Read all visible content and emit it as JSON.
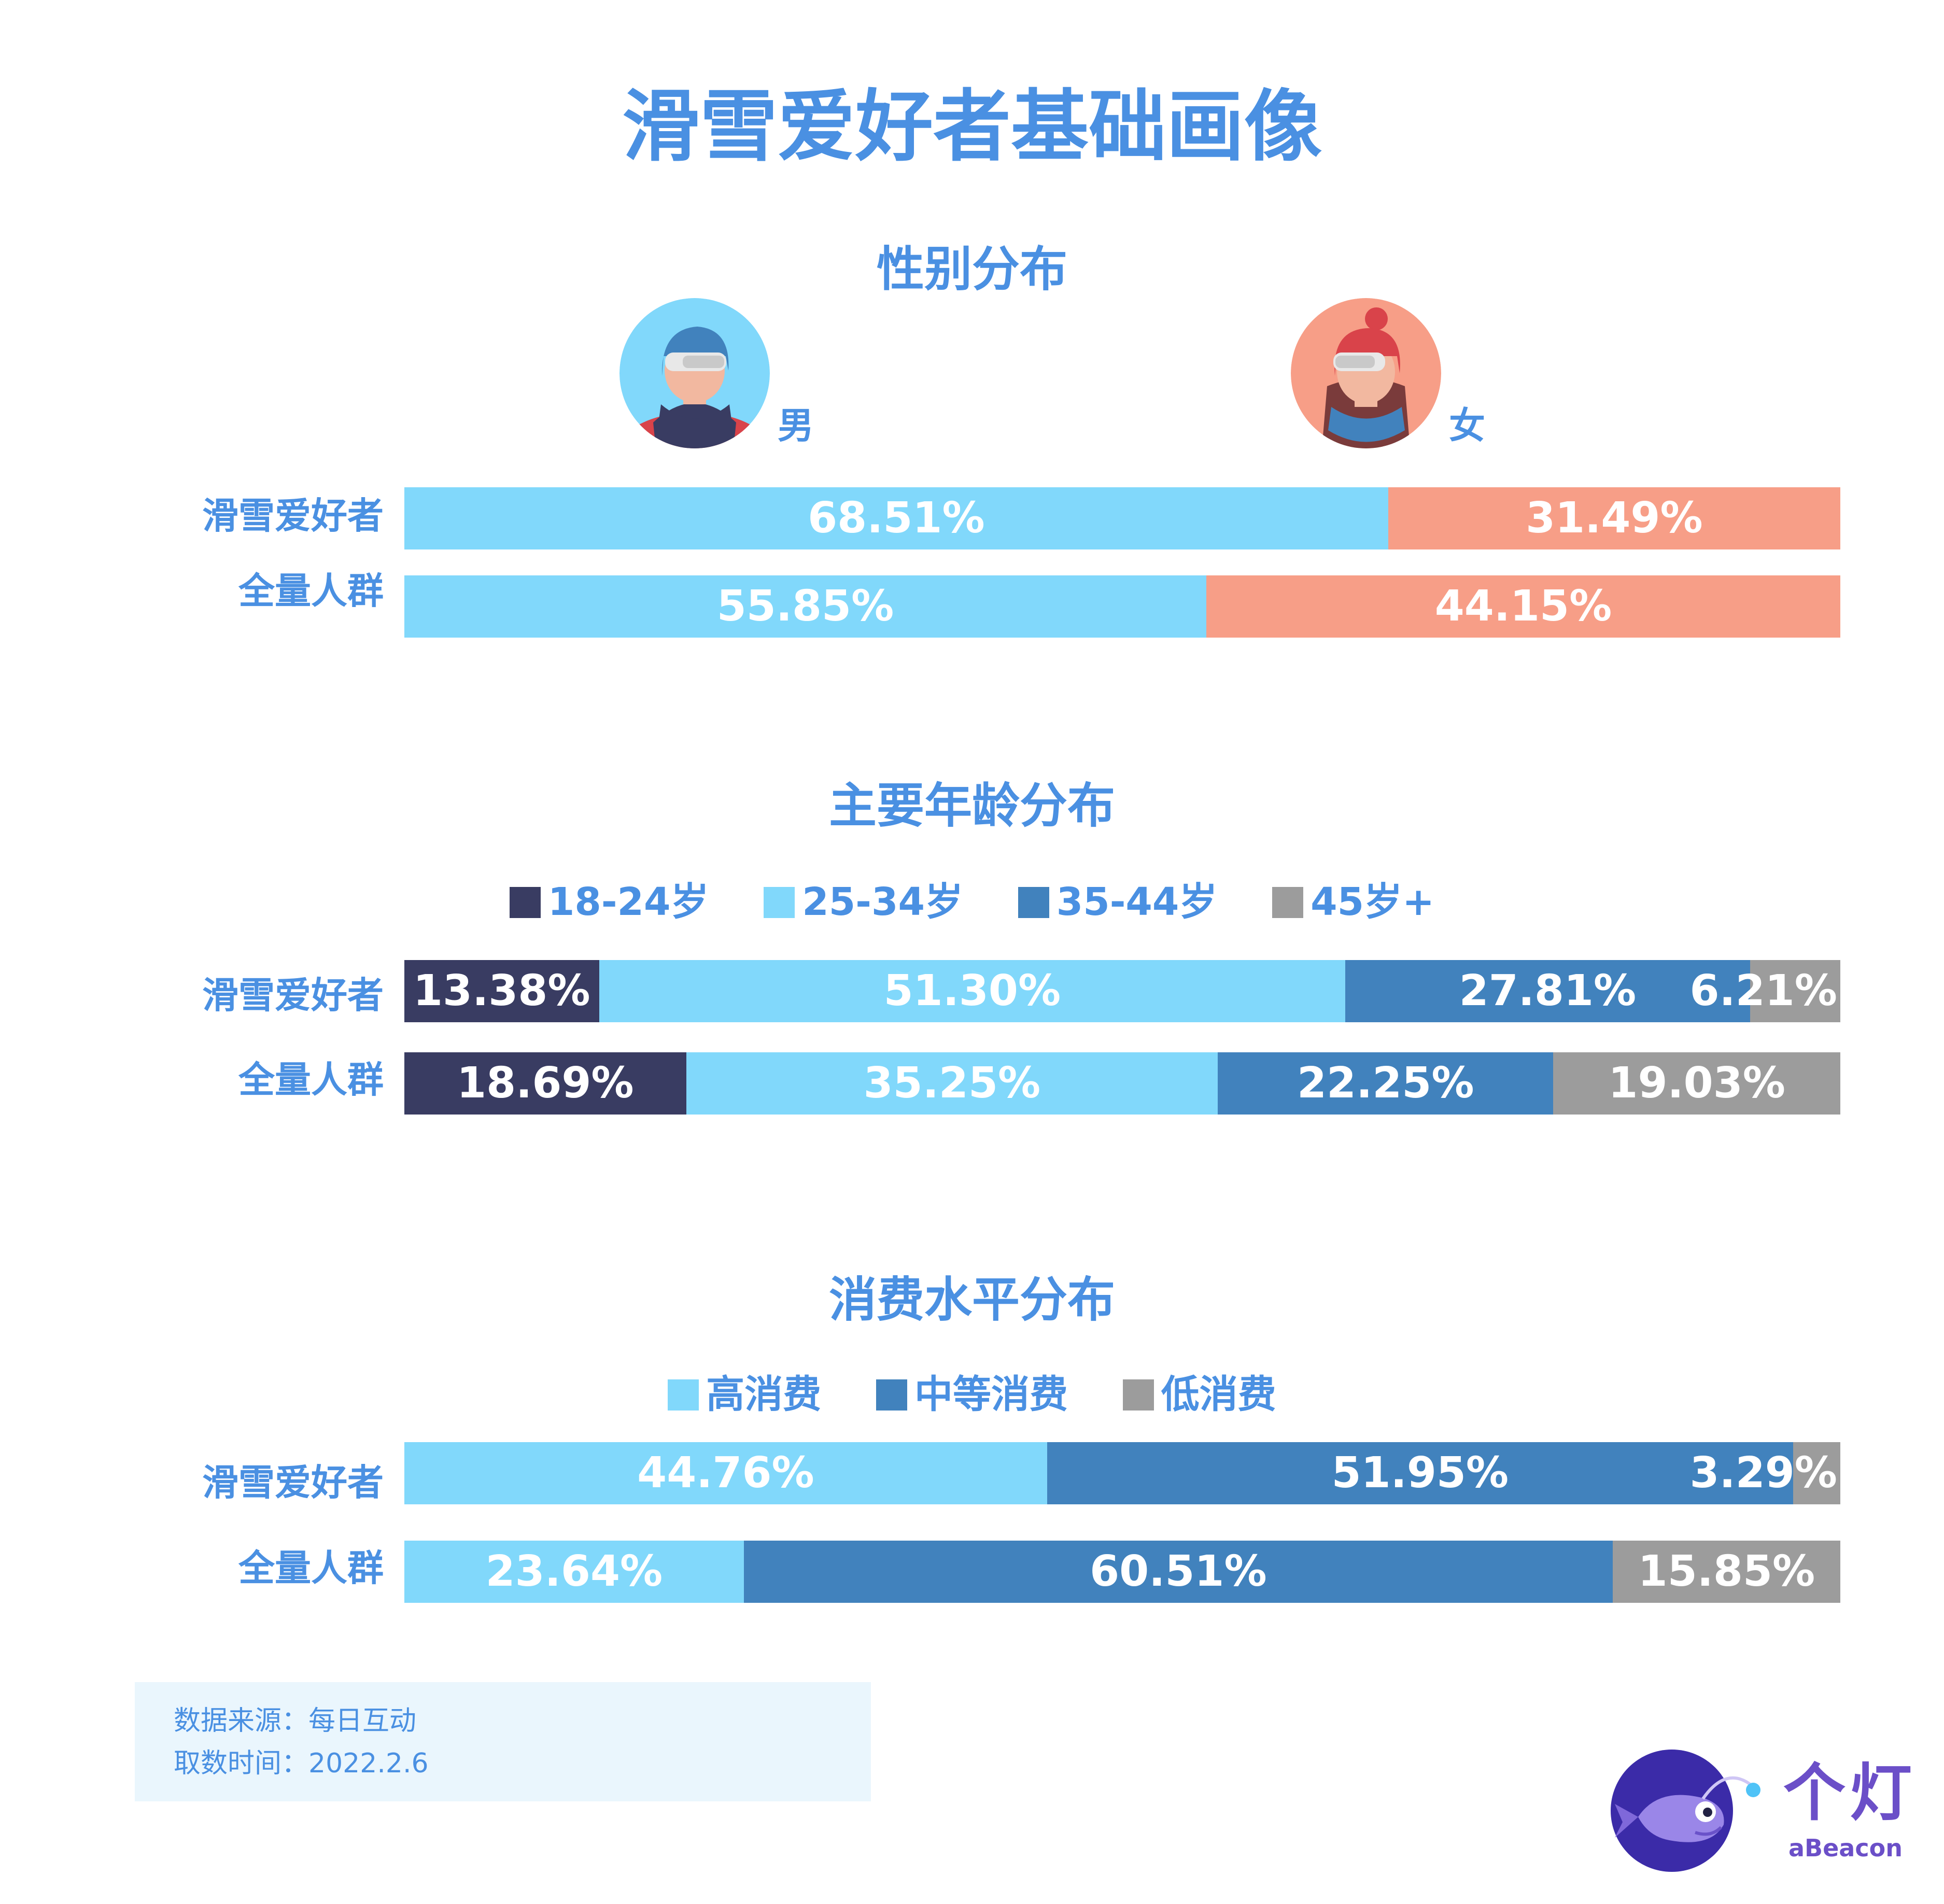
{
  "title": "滑雪爱好者基础画像",
  "colors": {
    "title": "#4a90e2",
    "male": "#81d8fb",
    "female": "#f79e87",
    "age_18_24": "#393c62",
    "age_25_34": "#81d8fb",
    "age_35_44": "#4182bd",
    "age_45_plus": "#9c9c9c",
    "high": "#81d8fb",
    "mid": "#4182bd",
    "low": "#9c9c9c"
  },
  "gender": {
    "section_title": "性别分布",
    "male_label": "男",
    "female_label": "女"
  },
  "age": {
    "section_title": "主要年龄分布",
    "legend": [
      "18-24岁",
      "25-34岁",
      "35-44岁",
      "45岁+"
    ]
  },
  "spending": {
    "section_title": "消费水平分布",
    "legend": [
      "高消费",
      "中等消费",
      "低消费"
    ]
  },
  "source": {
    "line1": "数据来源：每日互动",
    "line2": "取数时间：2022.2.6"
  },
  "brand": {
    "cn": "个灯",
    "en": "aBeacon"
  },
  "chart_data": [
    {
      "type": "bar",
      "stacked": true,
      "orientation": "horizontal",
      "title": "性别分布",
      "categories": [
        "滑雪爱好者",
        "全量人群"
      ],
      "series": [
        {
          "name": "男",
          "values": [
            68.51,
            55.85
          ],
          "labels": [
            "68.51%",
            "55.85%"
          ]
        },
        {
          "name": "女",
          "values": [
            31.49,
            44.15
          ],
          "labels": [
            "31.49%",
            "44.15%"
          ]
        }
      ]
    },
    {
      "type": "bar",
      "stacked": true,
      "orientation": "horizontal",
      "title": "主要年龄分布",
      "categories": [
        "滑雪爱好者",
        "全量人群"
      ],
      "series": [
        {
          "name": "18-24岁",
          "values": [
            13.38,
            18.69
          ],
          "labels": [
            "13.38%",
            "18.69%"
          ]
        },
        {
          "name": "25-34岁",
          "values": [
            51.3,
            35.25
          ],
          "labels": [
            "51.30%",
            "35.25%"
          ]
        },
        {
          "name": "35-44岁",
          "values": [
            27.81,
            22.25
          ],
          "labels": [
            "27.81%",
            "22.25%"
          ]
        },
        {
          "name": "45岁+",
          "values": [
            6.21,
            19.03
          ],
          "labels": [
            "6.21%",
            "19.03%"
          ]
        }
      ]
    },
    {
      "type": "bar",
      "stacked": true,
      "orientation": "horizontal",
      "title": "消费水平分布",
      "categories": [
        "滑雪爱好者",
        "全量人群"
      ],
      "series": [
        {
          "name": "高消费",
          "values": [
            44.76,
            23.64
          ],
          "labels": [
            "44.76%",
            "23.64%"
          ]
        },
        {
          "name": "中等消费",
          "values": [
            51.95,
            60.51
          ],
          "labels": [
            "51.95%",
            "60.51%"
          ]
        },
        {
          "name": "低消费",
          "values": [
            3.29,
            15.85
          ],
          "labels": [
            "3.29%",
            "15.85%"
          ]
        }
      ]
    }
  ]
}
